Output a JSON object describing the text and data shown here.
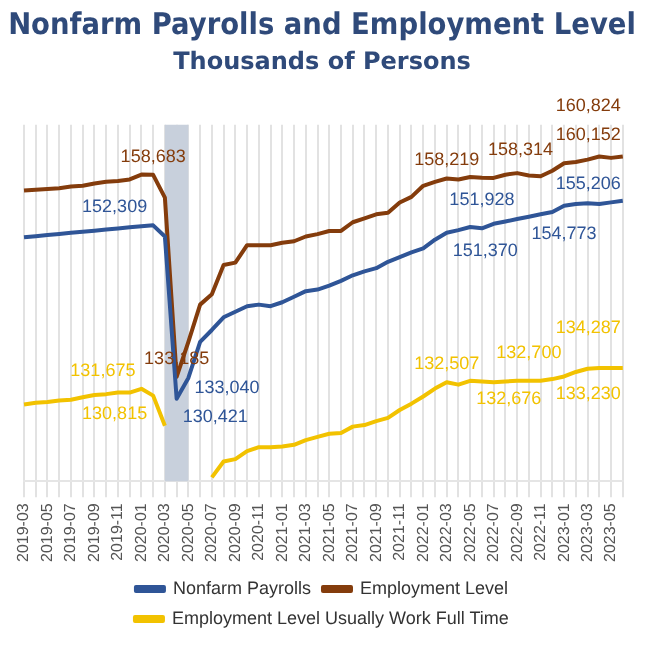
{
  "chart_data": {
    "type": "line",
    "title": "Nonfarm Payrolls and Employment Level",
    "subtitle": "Thousands of Persons",
    "categories": [
      "2019-03",
      null,
      "2019-05",
      null,
      "2019-07",
      null,
      "2019-09",
      null,
      "2019-11",
      null,
      "2020-01",
      null,
      "2020-03",
      null,
      "2020-05",
      null,
      "2020-07",
      null,
      "2020-09",
      null,
      "2020-11",
      null,
      "2021-01",
      null,
      "2021-03",
      null,
      "2021-05",
      null,
      "2021-07",
      null,
      "2021-09",
      null,
      "2021-11",
      null,
      "2022-01",
      null,
      "2022-03",
      null,
      "2022-05",
      null,
      "2022-07",
      null,
      "2022-09",
      null,
      "2022-11",
      null,
      "2023-01",
      null,
      "2023-03",
      null,
      "2023-05",
      null
    ],
    "series": [
      {
        "name": "Nonfarm Payrolls",
        "color": "#2f5597",
        "values": [
          150800,
          150940,
          151080,
          151220,
          151360,
          151500,
          151640,
          151780,
          151920,
          152060,
          152200,
          152309,
          150900,
          130421,
          133040,
          137600,
          139100,
          140700,
          141400,
          142100,
          142300,
          142100,
          142600,
          143300,
          144000,
          144200,
          144700,
          145300,
          146000,
          146500,
          146900,
          147700,
          148300,
          148900,
          149400,
          150500,
          151370,
          151700,
          152100,
          151928,
          152500,
          152800,
          153100,
          153400,
          153700,
          154000,
          154773,
          155000,
          155100,
          155000,
          155206,
          155400
        ],
        "value_labels": [
          null,
          null,
          null,
          null,
          null,
          null,
          null,
          null,
          null,
          null,
          null,
          "152,309",
          null,
          "130,421",
          "133,040",
          null,
          null,
          null,
          null,
          null,
          null,
          null,
          null,
          null,
          null,
          null,
          null,
          null,
          null,
          null,
          null,
          null,
          null,
          null,
          null,
          null,
          "151,370",
          null,
          null,
          "151,928",
          null,
          null,
          null,
          null,
          null,
          null,
          "154,773",
          null,
          null,
          null,
          "155,206",
          null
        ]
      },
      {
        "name": "Employment Level",
        "color": "#843c0c",
        "values": [
          156700,
          156800,
          156900,
          157000,
          157200,
          157300,
          157600,
          157800,
          157900,
          158100,
          158714,
          158683,
          155800,
          133185,
          137600,
          142300,
          143600,
          147300,
          147600,
          149800,
          149800,
          149800,
          150100,
          150300,
          150900,
          151200,
          151600,
          151600,
          152700,
          153200,
          153700,
          153900,
          155200,
          155900,
          157300,
          157800,
          158219,
          158100,
          158400,
          158314,
          158300,
          158700,
          158900,
          158600,
          158500,
          159200,
          160152,
          160300,
          160600,
          161000,
          160824,
          161000
        ],
        "value_labels": [
          null,
          null,
          null,
          null,
          null,
          null,
          null,
          null,
          null,
          null,
          null,
          "158,683",
          null,
          "133,185",
          null,
          null,
          null,
          null,
          null,
          null,
          null,
          null,
          null,
          null,
          null,
          null,
          null,
          null,
          null,
          null,
          null,
          null,
          null,
          null,
          null,
          null,
          "158,219",
          null,
          null,
          "158,314",
          null,
          null,
          null,
          null,
          null,
          null,
          "160,152",
          null,
          null,
          null,
          "160,824",
          null
        ]
      },
      {
        "name": "Employment Level Usually Work Full Time",
        "color": "#f2c200",
        "values": [
          129700,
          129900,
          130000,
          130200,
          130300,
          130600,
          130900,
          131000,
          131200,
          131200,
          131675,
          130815,
          127000,
          null,
          null,
          null,
          120500,
          122500,
          122800,
          123800,
          124300,
          124300,
          124400,
          124600,
          125200,
          125600,
          126000,
          126100,
          126900,
          127100,
          127600,
          128000,
          129000,
          129800,
          130700,
          131700,
          132507,
          132200,
          132676,
          132600,
          132500,
          132600,
          132700,
          132700,
          132700,
          132900,
          133230,
          133800,
          134200,
          134300,
          134287,
          134300
        ],
        "value_labels": [
          null,
          null,
          null,
          null,
          null,
          null,
          null,
          null,
          null,
          null,
          "131,675",
          "130,815",
          null,
          null,
          null,
          null,
          null,
          null,
          null,
          null,
          null,
          null,
          null,
          null,
          null,
          null,
          null,
          null,
          null,
          null,
          null,
          null,
          null,
          null,
          null,
          null,
          "132,507",
          null,
          "132,676",
          null,
          null,
          null,
          null,
          "132,700",
          null,
          null,
          "133,230",
          null,
          null,
          null,
          "134,287",
          null
        ]
      }
    ],
    "ylim": [
      120000,
      165000
    ],
    "tick_labels": "x",
    "grid": "x",
    "legend": "bottom",
    "marker": "none",
    "line_style": "solid",
    "bands": [
      {
        "axis": "x",
        "from": "2020-03",
        "to": "2020-05",
        "color": "#c8d0dc"
      }
    ]
  }
}
